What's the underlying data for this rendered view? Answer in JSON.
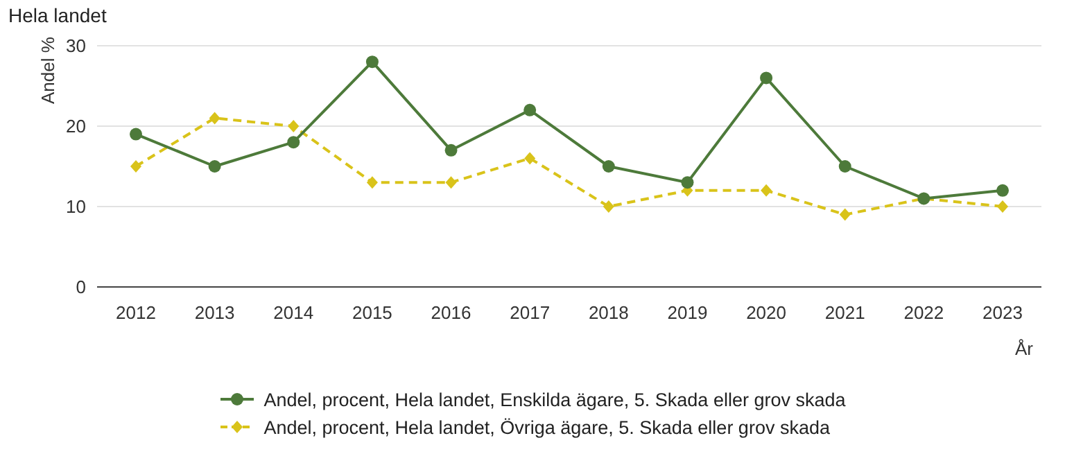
{
  "chart_data": {
    "type": "line",
    "title": "Hela landet",
    "ylabel": "Andel %",
    "xlabel": "År",
    "categories": [
      "2012",
      "2013",
      "2014",
      "2015",
      "2016",
      "2017",
      "2018",
      "2019",
      "2020",
      "2021",
      "2022",
      "2023"
    ],
    "series": [
      {
        "name": "Andel, procent, Hela landet, Enskilda ägare, 5. Skada eller grov skada",
        "color": "#4d7a3a",
        "marker": "circle",
        "line_style": "solid",
        "values": [
          19,
          15,
          18,
          28,
          17,
          22,
          15,
          13,
          26,
          15,
          11,
          12
        ]
      },
      {
        "name": "Andel, procent, Hela landet, Övriga ägare, 5. Skada eller grov skada",
        "color": "#d9c31a",
        "marker": "diamond",
        "line_style": "dashed",
        "values": [
          15,
          21,
          20,
          13,
          13,
          16,
          10,
          12,
          12,
          9,
          11,
          10
        ]
      }
    ],
    "ylim": [
      0,
      30
    ],
    "yticks": [
      0,
      10,
      20,
      30
    ],
    "grid": "y",
    "legend": "bottom"
  }
}
